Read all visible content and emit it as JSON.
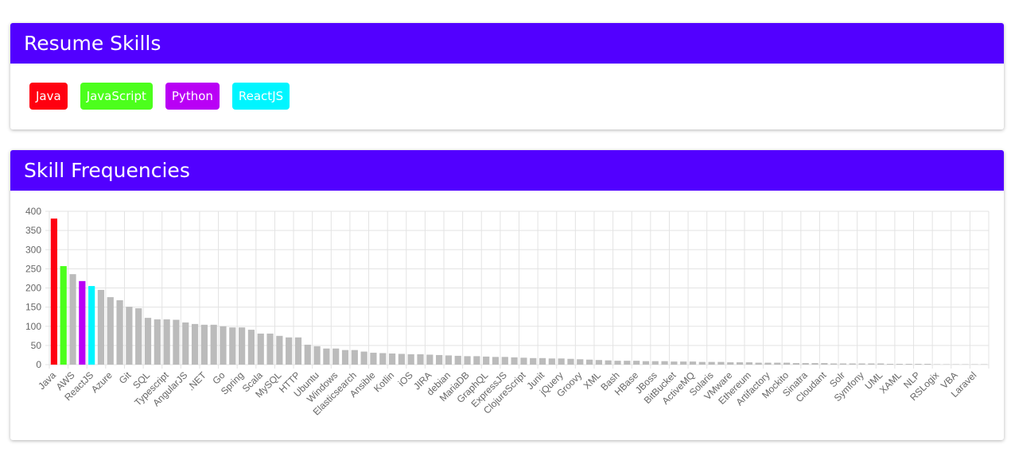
{
  "resume_card": {
    "title": "Resume Skills",
    "skills": [
      {
        "name": "Java",
        "color": "#ff0010"
      },
      {
        "name": "JavaScript",
        "color": "#4cff1c"
      },
      {
        "name": "Python",
        "color": "#b900f5"
      },
      {
        "name": "ReactJS",
        "color": "#00f5ff"
      }
    ]
  },
  "frequency_card": {
    "title": "Skill Frequencies"
  },
  "chart_data": {
    "type": "bar",
    "categories": [
      "Java",
      null,
      "AWS",
      null,
      "ReactJS",
      null,
      "Azure",
      null,
      "Git",
      null,
      "SQL",
      null,
      "Typescript",
      null,
      "AngularJS",
      null,
      ".NET",
      null,
      "Go",
      null,
      "Spring",
      null,
      "Scala",
      null,
      "MySQL",
      null,
      "HTTP",
      null,
      "Ubuntu",
      null,
      "Windows",
      null,
      "Elasticsearch",
      null,
      "Ansible",
      null,
      "Kotlin",
      null,
      "iOS",
      null,
      "JIRA",
      null,
      "debian",
      null,
      "MariaDB",
      null,
      "GraphQL",
      null,
      "ExpressJS",
      null,
      "ClojureScript",
      null,
      "Junit",
      null,
      "jQuery",
      null,
      "Groovy",
      null,
      "XML",
      null,
      "Bash",
      null,
      "HBase",
      null,
      "JBoss",
      null,
      "BitBucket",
      null,
      "ActiveMQ",
      null,
      "Solaris",
      null,
      "VMware",
      null,
      "Ethereum",
      null,
      "Artifactory",
      null,
      "Mockito",
      null,
      "Sinatra",
      null,
      "Cloudant",
      null,
      "Solr",
      null,
      "Symfony",
      null,
      "UML",
      null,
      "XAML",
      null,
      "NLP",
      null,
      "RSLogix",
      null,
      "VBA",
      null,
      "Laravel",
      null
    ],
    "values": [
      381,
      257,
      236,
      218,
      205,
      195,
      176,
      168,
      151,
      147,
      122,
      118,
      118,
      117,
      110,
      106,
      104,
      104,
      100,
      97,
      97,
      91,
      81,
      81,
      75,
      71,
      71,
      52,
      48,
      42,
      42,
      38,
      38,
      34,
      31,
      30,
      29,
      28,
      27,
      27,
      26,
      25,
      24,
      23,
      22,
      22,
      21,
      20,
      20,
      19,
      18,
      17,
      17,
      16,
      16,
      15,
      14,
      13,
      12,
      11,
      10,
      10,
      10,
      9,
      9,
      9,
      8,
      8,
      8,
      7,
      7,
      7,
      6,
      6,
      6,
      5,
      5,
      5,
      5,
      4,
      4,
      4,
      4,
      3,
      3,
      3,
      3,
      3,
      3,
      2,
      2,
      2,
      2,
      2,
      1,
      1,
      1,
      1,
      1,
      1
    ],
    "color": "#bbbbbb",
    "colors": [
      "#ff0010",
      "#4cff1c",
      "#bbbbbb",
      "#b900f5",
      "#00f5ff"
    ],
    "ylim": [
      0,
      400
    ],
    "yticks": [
      0,
      50,
      100,
      150,
      200,
      250,
      300,
      350,
      400
    ],
    "grid": true
  }
}
